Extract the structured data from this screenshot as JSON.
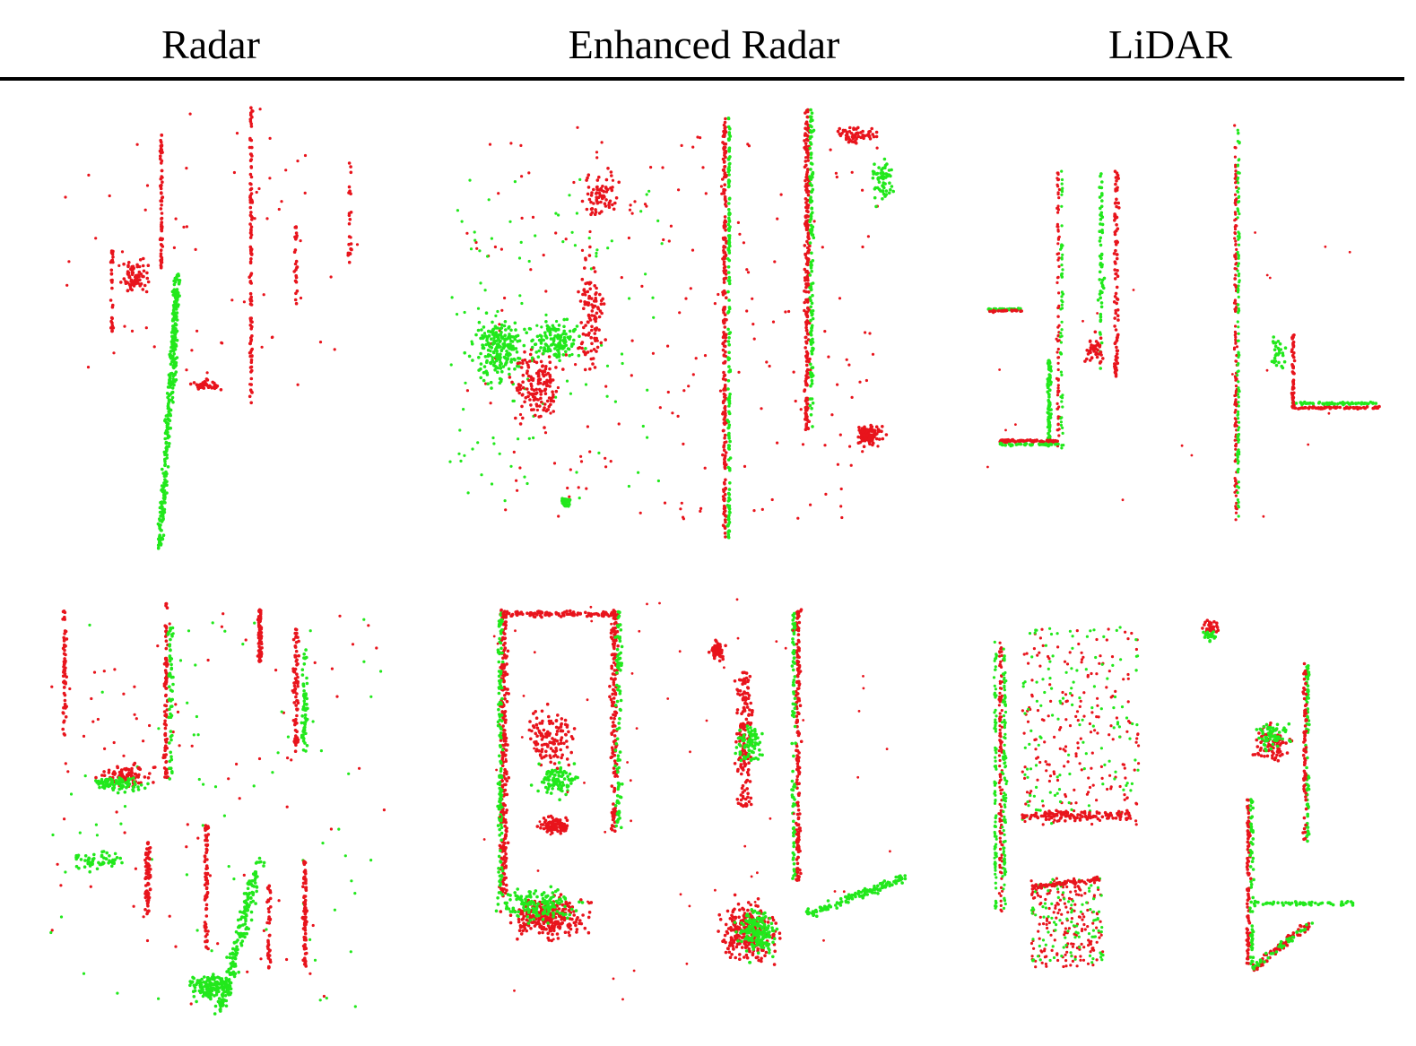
{
  "headers": {
    "radar": "Radar",
    "enhanced": "Enhanced Radar",
    "lidar": "LiDAR"
  },
  "colors": {
    "red": "#e8141c",
    "green": "#22e81c",
    "rule": "#000000"
  },
  "panels": [
    {
      "row": 1,
      "column": "radar"
    },
    {
      "row": 1,
      "column": "enhanced"
    },
    {
      "row": 1,
      "column": "lidar"
    },
    {
      "row": 2,
      "column": "radar"
    },
    {
      "row": 2,
      "column": "enhanced"
    },
    {
      "row": 2,
      "column": "lidar"
    }
  ]
}
